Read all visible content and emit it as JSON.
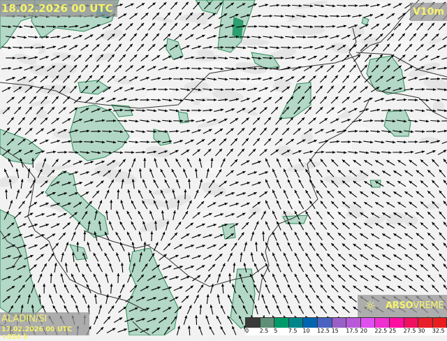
{
  "header": {
    "valid_time": "18.02.2026 00 UTC",
    "field": "V10m"
  },
  "model": {
    "name": "ALADIN/SI",
    "run": "17.02.2026 00 UTC +024 h"
  },
  "brand": {
    "icon": "sun-icon",
    "name_bold": "ARSO",
    "name_light": "VREME"
  },
  "legend": {
    "labels": [
      "0",
      "2.5",
      "5",
      "7.5",
      "10",
      "12.5",
      "15",
      "17.5",
      "20",
      "22.5",
      "25",
      "27.5",
      "30",
      "32.5"
    ],
    "colors": [
      "#3a3a3a",
      "#5f8f78",
      "#009a6a",
      "#00868a",
      "#0064b0",
      "#4a62c0",
      "#9a60c8",
      "#b85ad8",
      "#e050f0",
      "#f030d0",
      "#ff0fa0",
      "#f01060",
      "#e81e2a",
      "#e81e1e"
    ]
  },
  "map": {
    "background": "#f2f2f2",
    "wind_fill": "#a8d4c0",
    "wind_stroke": "#2e8a58",
    "border_color": "#333333"
  }
}
